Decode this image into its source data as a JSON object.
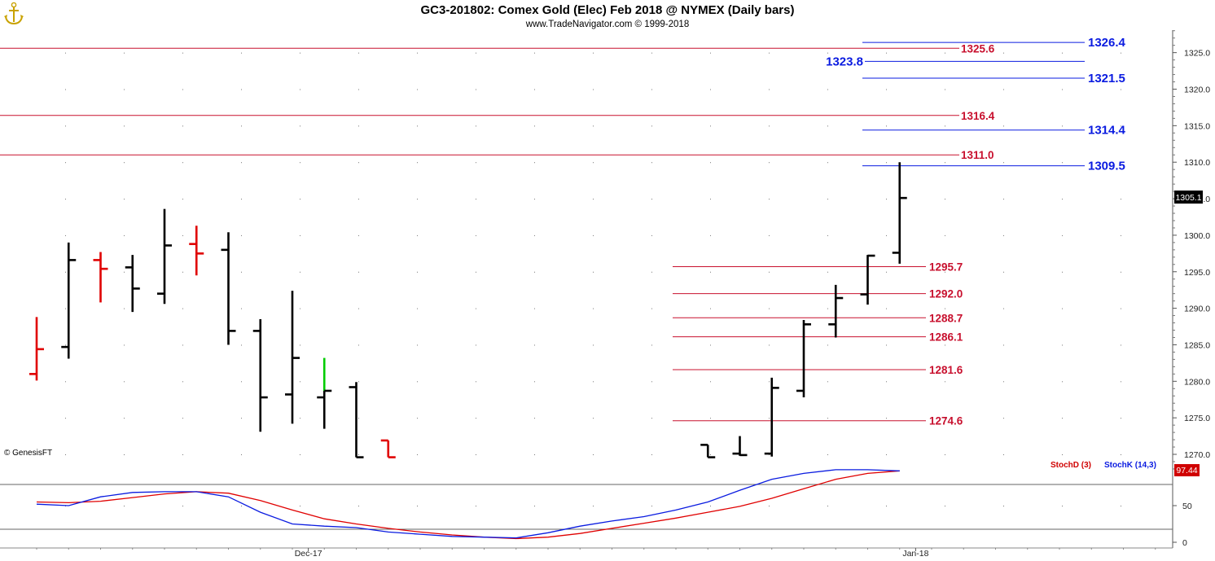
{
  "header": {
    "title": "GC3-201802:  Comex Gold (Elec) Feb 2018 @ NYMEX  (Daily bars)",
    "subtitle": "www.TradeNavigator.com © 1999-2018"
  },
  "watermark": "© GenesisFT",
  "colors": {
    "up_bar": "#000000",
    "red_bar": "#e00000",
    "green_bar": "#00cc00",
    "red_level": "#c8102e",
    "blue_level": "#0a1be0",
    "stoch_d": "#d00000",
    "stoch_k": "#0a1be0"
  },
  "chart_data": [
    {
      "type": "ohlc",
      "title": "GC3-201802:  Comex Gold (Elec) Feb 2018 @ NYMEX  (Daily bars)",
      "ylim": [
        1267,
        1329
      ],
      "y_ticks": [
        "1270.0",
        "1275.0",
        "1280.0",
        "1285.0",
        "1290.0",
        "1295.0",
        "1300.0",
        "1305.0",
        "1310.0",
        "1315.0",
        "1320.0",
        "1325.0"
      ],
      "x_labels": [
        {
          "label": "Dec-17",
          "after_bar": 8
        },
        {
          "label": "Jan-18",
          "after_bar": 27
        }
      ],
      "last_value": "1305.1",
      "bars": [
        {
          "i": 0,
          "open": 1281.0,
          "high": 1288.8,
          "low": 1280.1,
          "close": 1284.4,
          "color": "red"
        },
        {
          "i": 1,
          "open": 1284.7,
          "high": 1299.0,
          "low": 1283.1,
          "close": 1296.6,
          "color": "black"
        },
        {
          "i": 2,
          "open": 1296.6,
          "high": 1297.7,
          "low": 1290.8,
          "close": 1295.4,
          "color": "red"
        },
        {
          "i": 3,
          "open": 1295.6,
          "high": 1297.3,
          "low": 1289.5,
          "close": 1292.7,
          "color": "black"
        },
        {
          "i": 4,
          "open": 1292.0,
          "high": 1303.6,
          "low": 1290.6,
          "close": 1298.6,
          "color": "black"
        },
        {
          "i": 5,
          "open": 1298.8,
          "high": 1301.3,
          "low": 1294.5,
          "close": 1297.5,
          "color": "red"
        },
        {
          "i": 6,
          "open": 1298.0,
          "high": 1300.4,
          "low": 1285.0,
          "close": 1286.9,
          "color": "black"
        },
        {
          "i": 7,
          "open": 1286.9,
          "high": 1288.5,
          "low": 1273.1,
          "close": 1277.8,
          "color": "black"
        },
        {
          "i": 8,
          "open": 1278.2,
          "high": 1292.4,
          "low": 1274.2,
          "close": 1283.2,
          "color": "black"
        },
        {
          "i": 9,
          "open": 1277.8,
          "high": 1283.2,
          "low": 1273.5,
          "close": 1278.7,
          "color": "black",
          "upper_color": "green"
        },
        {
          "i": 10,
          "open": 1279.2,
          "high": 1279.9,
          "low": 1269.6,
          "close": 1269.6,
          "color": "black"
        },
        {
          "i": 11,
          "open": 1271.9,
          "high": 1271.9,
          "low": 1269.6,
          "close": 1269.6,
          "color": "red"
        },
        {
          "i": 21,
          "open": 1271.3,
          "high": 1271.3,
          "low": 1269.6,
          "close": 1269.6,
          "color": "black"
        },
        {
          "i": 22,
          "open": 1270.1,
          "high": 1272.5,
          "low": 1269.8,
          "close": 1269.9,
          "color": "black"
        },
        {
          "i": 23,
          "open": 1270.1,
          "high": 1280.5,
          "low": 1269.7,
          "close": 1279.1,
          "color": "black"
        },
        {
          "i": 24,
          "open": 1278.7,
          "high": 1288.4,
          "low": 1277.8,
          "close": 1287.8,
          "color": "black"
        },
        {
          "i": 25,
          "open": 1287.8,
          "high": 1293.2,
          "low": 1286.0,
          "close": 1291.4,
          "color": "black"
        },
        {
          "i": 26,
          "open": 1291.9,
          "high": 1297.3,
          "low": 1290.5,
          "close": 1297.2,
          "color": "black"
        },
        {
          "i": 27,
          "open": 1297.6,
          "high": 1310.0,
          "low": 1296.1,
          "close": 1305.1,
          "color": "black"
        }
      ],
      "red_levels_long": [
        {
          "value": 1325.6,
          "label": "1325.6"
        },
        {
          "value": 1316.4,
          "label": "1316.4"
        },
        {
          "value": 1311.0,
          "label": "1311.0"
        }
      ],
      "red_levels_short": [
        {
          "value": 1295.7,
          "label": "1295.7"
        },
        {
          "value": 1292.0,
          "label": "1292.0"
        },
        {
          "value": 1288.7,
          "label": "1288.7"
        },
        {
          "value": 1286.1,
          "label": "1286.1"
        },
        {
          "value": 1281.6,
          "label": "1281.6"
        },
        {
          "value": 1274.6,
          "label": "1274.6"
        }
      ],
      "blue_levels": [
        {
          "value": 1326.4,
          "label": "1326.4",
          "label_side": "right"
        },
        {
          "value": 1323.8,
          "label": "1323.8",
          "label_side": "left"
        },
        {
          "value": 1321.5,
          "label": "1321.5",
          "label_side": "right"
        },
        {
          "value": 1314.4,
          "label": "1314.4",
          "label_side": "right"
        },
        {
          "value": 1309.5,
          "label": "1309.5",
          "label_side": "right"
        }
      ]
    },
    {
      "type": "line",
      "title": "",
      "ylim": [
        0,
        100
      ],
      "y_ticks": [
        "0",
        "50"
      ],
      "grid_levels": [
        20,
        80
      ],
      "last_value": "97.44",
      "series": [
        {
          "name": "StochD (3)",
          "color": "red",
          "points": [
            [
              0,
              55
            ],
            [
              1,
              54
            ],
            [
              2,
              56
            ],
            [
              3,
              61
            ],
            [
              4,
              66
            ],
            [
              5,
              69
            ],
            [
              6,
              67
            ],
            [
              7,
              57
            ],
            [
              8,
              44
            ],
            [
              9,
              32
            ],
            [
              10,
              25
            ],
            [
              11,
              19
            ],
            [
              12,
              14
            ],
            [
              13,
              10
            ],
            [
              14,
              7
            ],
            [
              15,
              5
            ],
            [
              16,
              7
            ],
            [
              17,
              12
            ],
            [
              18,
              19
            ],
            [
              19,
              26
            ],
            [
              20,
              33
            ],
            [
              21,
              41
            ],
            [
              22,
              49
            ],
            [
              23,
              60
            ],
            [
              24,
              73
            ],
            [
              25,
              86
            ],
            [
              26,
              94
            ],
            [
              27,
              97.4
            ]
          ]
        },
        {
          "name": "StochK (14,3)",
          "color": "blue",
          "points": [
            [
              0,
              52
            ],
            [
              1,
              50
            ],
            [
              2,
              62
            ],
            [
              3,
              68
            ],
            [
              4,
              69
            ],
            [
              5,
              69
            ],
            [
              6,
              62
            ],
            [
              7,
              41
            ],
            [
              8,
              25
            ],
            [
              9,
              22
            ],
            [
              10,
              20
            ],
            [
              11,
              14
            ],
            [
              12,
              11
            ],
            [
              13,
              8
            ],
            [
              14,
              7
            ],
            [
              15,
              6
            ],
            [
              16,
              13
            ],
            [
              17,
              22
            ],
            [
              18,
              29
            ],
            [
              19,
              35
            ],
            [
              20,
              44
            ],
            [
              21,
              55
            ],
            [
              22,
              71
            ],
            [
              23,
              86
            ],
            [
              24,
              94
            ],
            [
              25,
              99
            ],
            [
              26,
              99
            ],
            [
              27,
              97.4
            ]
          ]
        }
      ]
    }
  ]
}
